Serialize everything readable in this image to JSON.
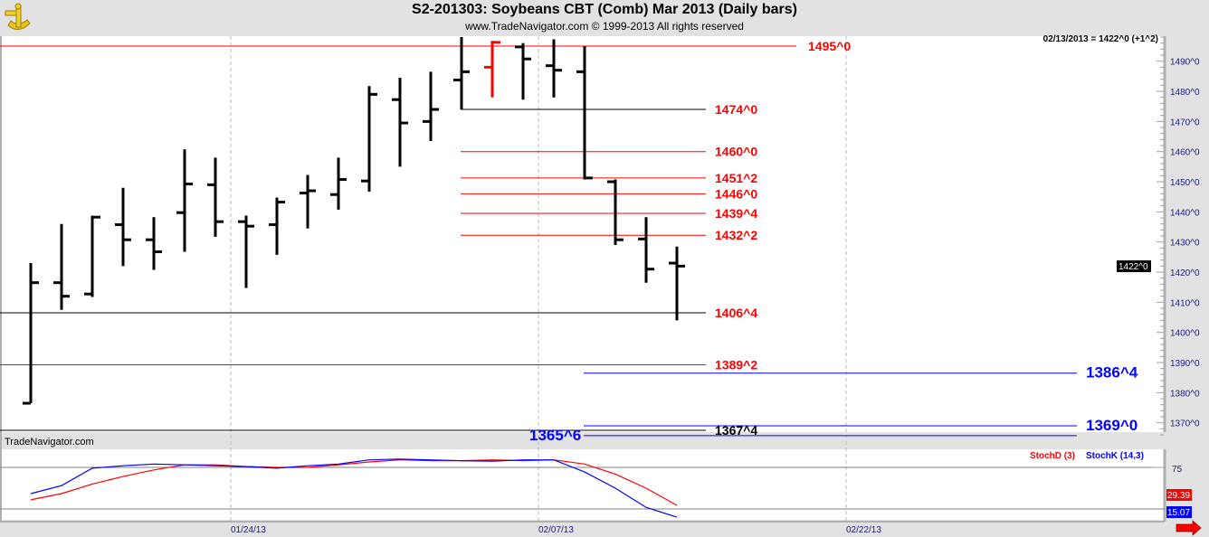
{
  "header": {
    "title": "S2-201303:  Soybeans CBT (Comb) Mar 2013  (Daily bars)",
    "copyright": "www.TradeNavigator.com © 1999-2013 All rights reserved",
    "logo_icon": "sextant-icon"
  },
  "readout": "02/13/2013 = 1422^0 (+1^2)",
  "watermark": "TradeNavigator.com",
  "last_price_tag": "1422^0",
  "colors": {
    "up_bar": "#000000",
    "highlight_bar": "#ff0000",
    "red_level": "#ff0000",
    "blue_level": "#0000ff",
    "black_level": "#000000",
    "stochD": "#ff0000",
    "stochK": "#0000ff"
  },
  "chart_data": [
    {
      "type": "ohlc",
      "title": "S2-201303:  Soybeans CBT (Comb) Mar 2013  (Daily bars)",
      "ylim": [
        1362,
        1500
      ],
      "y_ticks": [
        "1490^0",
        "1480^0",
        "1470^0",
        "1460^0",
        "1450^0",
        "1440^0",
        "1430^0",
        "1420^0",
        "1410^0",
        "1400^0",
        "1390^0",
        "1380^0",
        "1370^0"
      ],
      "y_tick_values": [
        1490,
        1480,
        1470,
        1460,
        1450,
        1440,
        1430,
        1420,
        1410,
        1400,
        1390,
        1380,
        1370
      ],
      "x_ticks": [
        {
          "label": "01/24/13",
          "index": 6.5
        },
        {
          "label": "02/07/13",
          "index": 16.5
        },
        {
          "label": "02/22/13",
          "index": 26.5
        }
      ],
      "bars": [
        {
          "o": 1376.5,
          "h": 1423,
          "l": 1376.5,
          "c": 1416.5
        },
        {
          "o": 1416.5,
          "h": 1436,
          "l": 1407.5,
          "c": 1412
        },
        {
          "o": 1412.75,
          "h": 1438.75,
          "l": 1411.75,
          "c": 1438.25
        },
        {
          "o": 1435.75,
          "h": 1448,
          "l": 1422,
          "c": 1430.75
        },
        {
          "o": 1430.75,
          "h": 1438.25,
          "l": 1420.75,
          "c": 1426.75
        },
        {
          "o": 1439.75,
          "h": 1460.75,
          "l": 1426.75,
          "c": 1449.25
        },
        {
          "o": 1449,
          "h": 1458,
          "l": 1431.75,
          "c": 1436.75
        },
        {
          "o": 1436.75,
          "h": 1438.75,
          "l": 1414.75,
          "c": 1435.25
        },
        {
          "o": 1435.75,
          "h": 1444.75,
          "l": 1425.75,
          "c": 1443.25
        },
        {
          "o": 1446.25,
          "h": 1452.25,
          "l": 1434.5,
          "c": 1447
        },
        {
          "o": 1445.75,
          "h": 1458,
          "l": 1440.75,
          "c": 1450.75
        },
        {
          "o": 1450.25,
          "h": 1481.75,
          "l": 1446.75,
          "c": 1479
        },
        {
          "o": 1477.25,
          "h": 1484.5,
          "l": 1455,
          "c": 1469.5
        },
        {
          "o": 1470,
          "h": 1486.5,
          "l": 1463.5,
          "c": 1474
        },
        {
          "o": 1483.75,
          "h": 1498,
          "l": 1474,
          "c": 1486.5
        },
        {
          "o": 1488,
          "h": 1496.75,
          "l": 1478,
          "c": 1496.25,
          "highlight": true
        },
        {
          "o": 1494.75,
          "h": 1496,
          "l": 1477.25,
          "c": 1490.75
        },
        {
          "o": 1488.5,
          "h": 1497.25,
          "l": 1478,
          "c": 1487
        },
        {
          "o": 1486.5,
          "h": 1495,
          "l": 1450.75,
          "c": 1451.25
        },
        {
          "o": 1450,
          "h": 1450.75,
          "l": 1429,
          "c": 1430.75
        },
        {
          "o": 1431,
          "h": 1438.25,
          "l": 1416.5,
          "c": 1421
        },
        {
          "o": 1423,
          "h": 1428.5,
          "l": 1404,
          "c": 1422
        }
      ],
      "levels": [
        {
          "label": "1495^0",
          "value": 1495,
          "color": "red",
          "label_color": "red",
          "span": "full"
        },
        {
          "label": "1474^0",
          "value": 1474,
          "color": "black",
          "label_color": "red",
          "span": "recent"
        },
        {
          "label": "1460^0",
          "value": 1460,
          "color": "red",
          "label_color": "red",
          "span": "recent"
        },
        {
          "label": "1451^2",
          "value": 1451.25,
          "color": "red",
          "label_color": "red",
          "span": "recent"
        },
        {
          "label": "1446^0",
          "value": 1446,
          "color": "red",
          "label_color": "red",
          "span": "recent"
        },
        {
          "label": "1439^4",
          "value": 1439.5,
          "color": "red",
          "label_color": "red",
          "span": "recent"
        },
        {
          "label": "1432^2",
          "value": 1432.25,
          "color": "red",
          "label_color": "red",
          "span": "recent"
        },
        {
          "label": "1406^4",
          "value": 1406.5,
          "color": "black",
          "label_color": "red",
          "span": "full"
        },
        {
          "label": "1389^2",
          "value": 1389.25,
          "color": "red",
          "label_color": "red",
          "span": "full"
        },
        {
          "label": "1386^4",
          "value": 1386.5,
          "color": "blue",
          "label_color": "blue",
          "span": "projection"
        },
        {
          "label": "1369^0",
          "value": 1369,
          "color": "blue",
          "label_color": "blue",
          "span": "projection"
        },
        {
          "label": "1367^4",
          "value": 1367.5,
          "color": "black",
          "label_color": "black",
          "span": "full"
        },
        {
          "label": "1365^6",
          "value": 1365.75,
          "color": "blue",
          "label_color": "blue",
          "span": "projection",
          "label_side": "left"
        }
      ]
    },
    {
      "type": "line",
      "ylim": [
        0,
        100
      ],
      "y_ticks": [
        "75"
      ],
      "reference_lines": [
        75,
        25
      ],
      "series": [
        {
          "name": "StochD (3)",
          "color": "#ff0000",
          "last_label": "29.39",
          "values": [
            36,
            43.5,
            55,
            64,
            72,
            78,
            78,
            76,
            75,
            75,
            78,
            81.5,
            84,
            83,
            83,
            84,
            83,
            84,
            79,
            67,
            50,
            29.39
          ]
        },
        {
          "name": "StochK (14,3)",
          "color": "#0000ff",
          "last_label": "15.07",
          "values": [
            43.5,
            53,
            74,
            77,
            79,
            78,
            77,
            76,
            74,
            77,
            79,
            84,
            85,
            84,
            83,
            82.5,
            84,
            84,
            69.5,
            50,
            27,
            15.07
          ]
        }
      ]
    }
  ]
}
